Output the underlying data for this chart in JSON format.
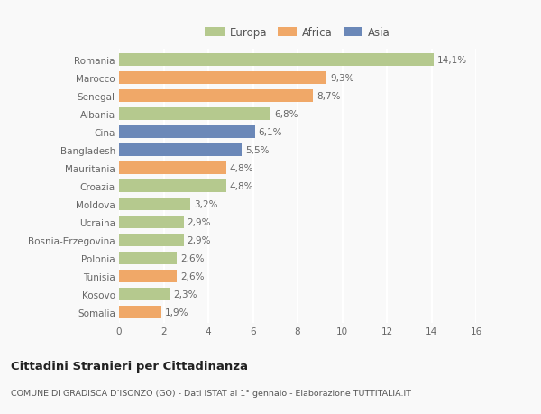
{
  "categories": [
    "Romania",
    "Marocco",
    "Senegal",
    "Albania",
    "Cina",
    "Bangladesh",
    "Mauritania",
    "Croazia",
    "Moldova",
    "Ucraina",
    "Bosnia-Erzegovina",
    "Polonia",
    "Tunisia",
    "Kosovo",
    "Somalia"
  ],
  "values": [
    14.1,
    9.3,
    8.7,
    6.8,
    6.1,
    5.5,
    4.8,
    4.8,
    3.2,
    2.9,
    2.9,
    2.6,
    2.6,
    2.3,
    1.9
  ],
  "labels": [
    "14,1%",
    "9,3%",
    "8,7%",
    "6,8%",
    "6,1%",
    "5,5%",
    "4,8%",
    "4,8%",
    "3,2%",
    "2,9%",
    "2,9%",
    "2,6%",
    "2,6%",
    "2,3%",
    "1,9%"
  ],
  "continents": [
    "Europa",
    "Africa",
    "Africa",
    "Europa",
    "Asia",
    "Asia",
    "Africa",
    "Europa",
    "Europa",
    "Europa",
    "Europa",
    "Europa",
    "Africa",
    "Europa",
    "Africa"
  ],
  "colors": {
    "Europa": "#b5c98e",
    "Africa": "#f0a868",
    "Asia": "#6b88b8"
  },
  "xlim": [
    0,
    16
  ],
  "xticks": [
    0,
    2,
    4,
    6,
    8,
    10,
    12,
    14,
    16
  ],
  "title": "Cittadini Stranieri per Cittadinanza",
  "subtitle": "COMUNE DI GRADISCA D’ISONZO (GO) - Dati ISTAT al 1° gennaio - Elaborazione TUTTITALIA.IT",
  "bg_color": "#f9f9f9",
  "grid_color": "#ffffff",
  "bar_height": 0.68,
  "label_fontsize": 7.5,
  "ytick_fontsize": 7.5,
  "xtick_fontsize": 7.5,
  "title_fontsize": 9.5,
  "subtitle_fontsize": 6.8,
  "legend_fontsize": 8.5
}
